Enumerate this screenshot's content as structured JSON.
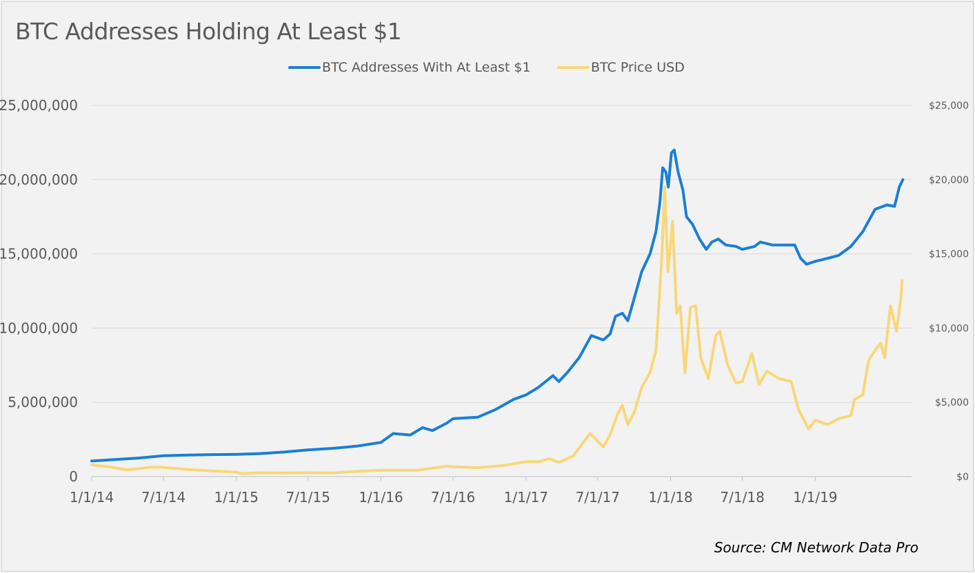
{
  "chart_data": {
    "type": "line",
    "title": "BTC Addresses Holding At Least $1",
    "source": "Source: CM Network Data Pro",
    "legend_position": "top",
    "grid": true,
    "xlim": [
      "2014-01-01",
      "2019-09-01"
    ],
    "x_ticks": [
      "1/1/14",
      "7/1/14",
      "1/1/15",
      "7/1/15",
      "1/1/16",
      "7/1/16",
      "1/1/17",
      "7/1/17",
      "1/1/18",
      "7/1/18",
      "1/1/19"
    ],
    "y_left": {
      "ylim": [
        0,
        25000000
      ],
      "ticks": [
        "0",
        "5,000,000",
        "10,000,000",
        "15,000,000",
        "20,000,000",
        "25,000,000"
      ]
    },
    "y_right": {
      "ylim": [
        0,
        25000
      ],
      "ticks": [
        "$0",
        "$5,000",
        "$10,000",
        "$15,000",
        "$20,000",
        "$25,000"
      ]
    },
    "series": [
      {
        "name": "BTC Addresses With At Least $1",
        "axis": "left",
        "color": "#1a7fd6",
        "points": [
          [
            "2014-01-01",
            1050000
          ],
          [
            "2014-03-01",
            1150000
          ],
          [
            "2014-05-01",
            1250000
          ],
          [
            "2014-07-01",
            1400000
          ],
          [
            "2014-09-01",
            1450000
          ],
          [
            "2014-11-01",
            1480000
          ],
          [
            "2015-01-01",
            1500000
          ],
          [
            "2015-03-01",
            1550000
          ],
          [
            "2015-05-01",
            1650000
          ],
          [
            "2015-07-01",
            1800000
          ],
          [
            "2015-09-01",
            1900000
          ],
          [
            "2015-11-01",
            2050000
          ],
          [
            "2016-01-01",
            2300000
          ],
          [
            "2016-02-01",
            2900000
          ],
          [
            "2016-03-15",
            2800000
          ],
          [
            "2016-04-15",
            3300000
          ],
          [
            "2016-05-10",
            3100000
          ],
          [
            "2016-06-15",
            3600000
          ],
          [
            "2016-07-01",
            3900000
          ],
          [
            "2016-09-01",
            4000000
          ],
          [
            "2016-10-15",
            4500000
          ],
          [
            "2016-12-01",
            5200000
          ],
          [
            "2017-01-01",
            5500000
          ],
          [
            "2017-02-01",
            6000000
          ],
          [
            "2017-03-10",
            6800000
          ],
          [
            "2017-03-25",
            6400000
          ],
          [
            "2017-04-15",
            7000000
          ],
          [
            "2017-05-15",
            8000000
          ],
          [
            "2017-06-15",
            9500000
          ],
          [
            "2017-07-15",
            9200000
          ],
          [
            "2017-08-01",
            9600000
          ],
          [
            "2017-08-15",
            10800000
          ],
          [
            "2017-09-01",
            11000000
          ],
          [
            "2017-09-15",
            10500000
          ],
          [
            "2017-10-01",
            12000000
          ],
          [
            "2017-10-20",
            13800000
          ],
          [
            "2017-11-10",
            15000000
          ],
          [
            "2017-11-25",
            16500000
          ],
          [
            "2017-12-05",
            18500000
          ],
          [
            "2017-12-12",
            20800000
          ],
          [
            "2017-12-20",
            20500000
          ],
          [
            "2017-12-26",
            19500000
          ],
          [
            "2018-01-03",
            21800000
          ],
          [
            "2018-01-10",
            22000000
          ],
          [
            "2018-01-20",
            20500000
          ],
          [
            "2018-02-01",
            19300000
          ],
          [
            "2018-02-10",
            17500000
          ],
          [
            "2018-02-25",
            17000000
          ],
          [
            "2018-03-15",
            16000000
          ],
          [
            "2018-04-01",
            15300000
          ],
          [
            "2018-04-15",
            15800000
          ],
          [
            "2018-05-01",
            16000000
          ],
          [
            "2018-05-20",
            15600000
          ],
          [
            "2018-06-15",
            15500000
          ],
          [
            "2018-07-01",
            15300000
          ],
          [
            "2018-08-01",
            15500000
          ],
          [
            "2018-08-15",
            15800000
          ],
          [
            "2018-09-15",
            15600000
          ],
          [
            "2018-10-15",
            15600000
          ],
          [
            "2018-11-10",
            15600000
          ],
          [
            "2018-11-25",
            14700000
          ],
          [
            "2018-12-10",
            14300000
          ],
          [
            "2019-01-01",
            14500000
          ],
          [
            "2019-02-01",
            14700000
          ],
          [
            "2019-03-01",
            14900000
          ],
          [
            "2019-04-01",
            15500000
          ],
          [
            "2019-05-01",
            16500000
          ],
          [
            "2019-06-01",
            18000000
          ],
          [
            "2019-07-01",
            18300000
          ],
          [
            "2019-07-20",
            18200000
          ],
          [
            "2019-08-01",
            19500000
          ],
          [
            "2019-08-10",
            20000000
          ]
        ]
      },
      {
        "name": "BTC Price USD",
        "axis": "right",
        "color": "#f9d779",
        "points": [
          [
            "2014-01-01",
            800
          ],
          [
            "2014-02-15",
            650
          ],
          [
            "2014-04-01",
            450
          ],
          [
            "2014-06-01",
            640
          ],
          [
            "2014-07-01",
            620
          ],
          [
            "2014-09-01",
            480
          ],
          [
            "2014-11-01",
            380
          ],
          [
            "2015-01-01",
            300
          ],
          [
            "2015-01-15",
            200
          ],
          [
            "2015-03-01",
            260
          ],
          [
            "2015-05-01",
            240
          ],
          [
            "2015-07-01",
            270
          ],
          [
            "2015-09-01",
            240
          ],
          [
            "2015-11-01",
            350
          ],
          [
            "2016-01-01",
            430
          ],
          [
            "2016-04-01",
            420
          ],
          [
            "2016-06-15",
            700
          ],
          [
            "2016-07-01",
            670
          ],
          [
            "2016-09-01",
            600
          ],
          [
            "2016-11-01",
            730
          ],
          [
            "2017-01-01",
            1000
          ],
          [
            "2017-02-01",
            1000
          ],
          [
            "2017-03-01",
            1200
          ],
          [
            "2017-03-25",
            950
          ],
          [
            "2017-05-01",
            1400
          ],
          [
            "2017-05-25",
            2300
          ],
          [
            "2017-06-12",
            2900
          ],
          [
            "2017-07-15",
            2000
          ],
          [
            "2017-08-01",
            2800
          ],
          [
            "2017-08-20",
            4200
          ],
          [
            "2017-09-01",
            4800
          ],
          [
            "2017-09-15",
            3500
          ],
          [
            "2017-10-01",
            4300
          ],
          [
            "2017-10-20",
            6000
          ],
          [
            "2017-11-10",
            7000
          ],
          [
            "2017-11-25",
            8500
          ],
          [
            "2017-12-01",
            11000
          ],
          [
            "2017-12-10",
            15000
          ],
          [
            "2017-12-17",
            19500
          ],
          [
            "2017-12-25",
            13800
          ],
          [
            "2018-01-06",
            17200
          ],
          [
            "2018-01-16",
            11000
          ],
          [
            "2018-01-25",
            11500
          ],
          [
            "2018-02-06",
            7000
          ],
          [
            "2018-02-20",
            11400
          ],
          [
            "2018-03-05",
            11500
          ],
          [
            "2018-03-18",
            8000
          ],
          [
            "2018-04-06",
            6600
          ],
          [
            "2018-04-25",
            9500
          ],
          [
            "2018-05-05",
            9800
          ],
          [
            "2018-05-25",
            7500
          ],
          [
            "2018-06-15",
            6300
          ],
          [
            "2018-07-01",
            6400
          ],
          [
            "2018-07-25",
            8300
          ],
          [
            "2018-08-12",
            6200
          ],
          [
            "2018-09-01",
            7100
          ],
          [
            "2018-10-01",
            6600
          ],
          [
            "2018-11-01",
            6400
          ],
          [
            "2018-11-20",
            4500
          ],
          [
            "2018-12-15",
            3200
          ],
          [
            "2019-01-01",
            3800
          ],
          [
            "2019-02-01",
            3500
          ],
          [
            "2019-03-01",
            3900
          ],
          [
            "2019-04-01",
            4100
          ],
          [
            "2019-04-10",
            5200
          ],
          [
            "2019-05-01",
            5500
          ],
          [
            "2019-05-15",
            7800
          ],
          [
            "2019-06-01",
            8500
          ],
          [
            "2019-06-15",
            9000
          ],
          [
            "2019-06-25",
            8000
          ],
          [
            "2019-07-10",
            11500
          ],
          [
            "2019-07-25",
            9800
          ],
          [
            "2019-08-05",
            12000
          ],
          [
            "2019-08-08",
            13200
          ]
        ]
      }
    ]
  }
}
